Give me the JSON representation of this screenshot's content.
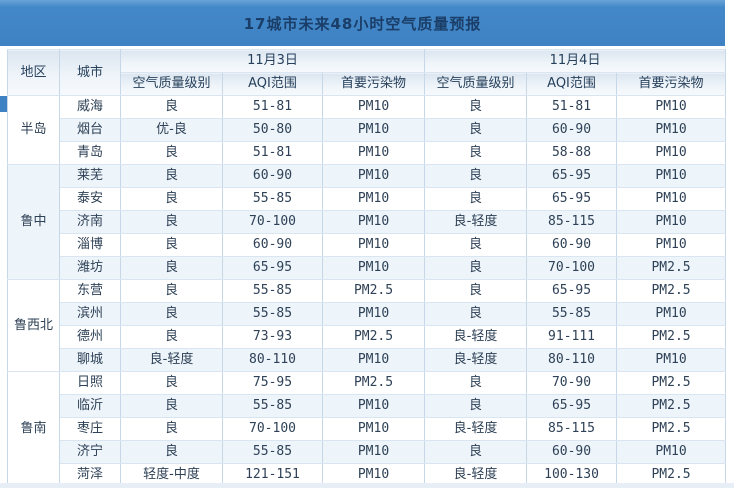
{
  "title": "17城市未来48小时空气质量预报",
  "colors": {
    "title_bar": "#3e82c4",
    "title_text": "#1a3e68",
    "row_stripe": "#edf4fa",
    "border": "#c6d8e8",
    "body_text": "#2e4156",
    "bottom_strip": "#e7eef5"
  },
  "table": {
    "region_header": "地区",
    "city_header": "城市",
    "day_groups": [
      {
        "date": "11月3日",
        "subcols": [
          "空气质量级别",
          "AQI范围",
          "首要污染物"
        ]
      },
      {
        "date": "11月4日",
        "subcols": [
          "空气质量级别",
          "AQI范围",
          "首要污染物"
        ]
      }
    ],
    "regions": [
      {
        "name": "半岛",
        "cities": [
          {
            "city": "威海",
            "d1": [
              "良",
              "51-81",
              "PM10"
            ],
            "d2": [
              "良",
              "51-81",
              "PM10"
            ]
          },
          {
            "city": "烟台",
            "d1": [
              "优-良",
              "50-80",
              "PM10"
            ],
            "d2": [
              "良",
              "60-90",
              "PM10"
            ]
          },
          {
            "city": "青岛",
            "d1": [
              "良",
              "51-81",
              "PM10"
            ],
            "d2": [
              "良",
              "58-88",
              "PM10"
            ]
          }
        ]
      },
      {
        "name": "鲁中",
        "cities": [
          {
            "city": "莱芜",
            "d1": [
              "良",
              "60-90",
              "PM10"
            ],
            "d2": [
              "良",
              "65-95",
              "PM10"
            ]
          },
          {
            "city": "泰安",
            "d1": [
              "良",
              "55-85",
              "PM10"
            ],
            "d2": [
              "良",
              "65-95",
              "PM10"
            ]
          },
          {
            "city": "济南",
            "d1": [
              "良",
              "70-100",
              "PM10"
            ],
            "d2": [
              "良-轻度",
              "85-115",
              "PM10"
            ]
          },
          {
            "city": "淄博",
            "d1": [
              "良",
              "60-90",
              "PM10"
            ],
            "d2": [
              "良",
              "60-90",
              "PM10"
            ]
          },
          {
            "city": "潍坊",
            "d1": [
              "良",
              "65-95",
              "PM10"
            ],
            "d2": [
              "良",
              "70-100",
              "PM2.5"
            ]
          }
        ]
      },
      {
        "name": "鲁西北",
        "cities": [
          {
            "city": "东营",
            "d1": [
              "良",
              "55-85",
              "PM2.5"
            ],
            "d2": [
              "良",
              "65-95",
              "PM2.5"
            ]
          },
          {
            "city": "滨州",
            "d1": [
              "良",
              "55-85",
              "PM10"
            ],
            "d2": [
              "良",
              "55-85",
              "PM10"
            ]
          },
          {
            "city": "德州",
            "d1": [
              "良",
              "73-93",
              "PM2.5"
            ],
            "d2": [
              "良-轻度",
              "91-111",
              "PM2.5"
            ]
          },
          {
            "city": "聊城",
            "d1": [
              "良-轻度",
              "80-110",
              "PM10"
            ],
            "d2": [
              "良-轻度",
              "80-110",
              "PM10"
            ]
          }
        ]
      },
      {
        "name": "鲁南",
        "cities": [
          {
            "city": "日照",
            "d1": [
              "良",
              "75-95",
              "PM2.5"
            ],
            "d2": [
              "良",
              "70-90",
              "PM2.5"
            ]
          },
          {
            "city": "临沂",
            "d1": [
              "良",
              "55-85",
              "PM10"
            ],
            "d2": [
              "良",
              "65-95",
              "PM2.5"
            ]
          },
          {
            "city": "枣庄",
            "d1": [
              "良",
              "70-100",
              "PM10"
            ],
            "d2": [
              "良-轻度",
              "85-115",
              "PM2.5"
            ]
          },
          {
            "city": "济宁",
            "d1": [
              "良",
              "55-85",
              "PM10"
            ],
            "d2": [
              "良",
              "60-90",
              "PM10"
            ]
          },
          {
            "city": "菏泽",
            "d1": [
              "轻度-中度",
              "121-151",
              "PM10"
            ],
            "d2": [
              "良-轻度",
              "100-130",
              "PM2.5"
            ]
          }
        ]
      }
    ]
  },
  "chart_data": {
    "type": "table",
    "title": "17城市未来48小时空气质量预报",
    "columns": [
      "地区",
      "城市",
      "11月3日 空气质量级别",
      "11月3日 AQI范围",
      "11月3日 首要污染物",
      "11月4日 空气质量级别",
      "11月4日 AQI范围",
      "11月4日 首要污染物"
    ],
    "rows": [
      [
        "半岛",
        "威海",
        "良",
        "51-81",
        "PM10",
        "良",
        "51-81",
        "PM10"
      ],
      [
        "半岛",
        "烟台",
        "优-良",
        "50-80",
        "PM10",
        "良",
        "60-90",
        "PM10"
      ],
      [
        "半岛",
        "青岛",
        "良",
        "51-81",
        "PM10",
        "良",
        "58-88",
        "PM10"
      ],
      [
        "鲁中",
        "莱芜",
        "良",
        "60-90",
        "PM10",
        "良",
        "65-95",
        "PM10"
      ],
      [
        "鲁中",
        "泰安",
        "良",
        "55-85",
        "PM10",
        "良",
        "65-95",
        "PM10"
      ],
      [
        "鲁中",
        "济南",
        "良",
        "70-100",
        "PM10",
        "良-轻度",
        "85-115",
        "PM10"
      ],
      [
        "鲁中",
        "淄博",
        "良",
        "60-90",
        "PM10",
        "良",
        "60-90",
        "PM10"
      ],
      [
        "鲁中",
        "潍坊",
        "良",
        "65-95",
        "PM10",
        "良",
        "70-100",
        "PM2.5"
      ],
      [
        "鲁西北",
        "东营",
        "良",
        "55-85",
        "PM2.5",
        "良",
        "65-95",
        "PM2.5"
      ],
      [
        "鲁西北",
        "滨州",
        "良",
        "55-85",
        "PM10",
        "良",
        "55-85",
        "PM10"
      ],
      [
        "鲁西北",
        "德州",
        "良",
        "73-93",
        "PM2.5",
        "良-轻度",
        "91-111",
        "PM2.5"
      ],
      [
        "鲁西北",
        "聊城",
        "良-轻度",
        "80-110",
        "PM10",
        "良-轻度",
        "80-110",
        "PM10"
      ],
      [
        "鲁南",
        "日照",
        "良",
        "75-95",
        "PM2.5",
        "良",
        "70-90",
        "PM2.5"
      ],
      [
        "鲁南",
        "临沂",
        "良",
        "55-85",
        "PM10",
        "良",
        "65-95",
        "PM2.5"
      ],
      [
        "鲁南",
        "枣庄",
        "良",
        "70-100",
        "PM10",
        "良-轻度",
        "85-115",
        "PM2.5"
      ],
      [
        "鲁南",
        "济宁",
        "良",
        "55-85",
        "PM10",
        "良",
        "60-90",
        "PM10"
      ],
      [
        "鲁南",
        "菏泽",
        "轻度-中度",
        "121-151",
        "PM10",
        "良-轻度",
        "100-130",
        "PM2.5"
      ]
    ]
  }
}
